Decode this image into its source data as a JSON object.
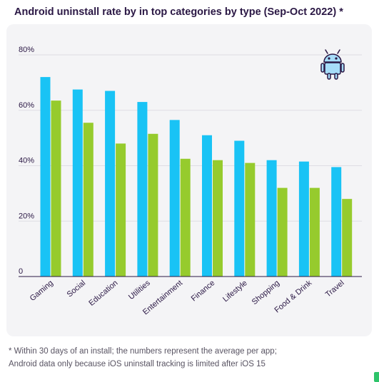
{
  "header": {
    "title": "Android uninstall rate by in top categories by type (Sep-Oct 2022) *"
  },
  "chart_data": {
    "type": "bar",
    "title": "Android uninstall rate by in top categories by type (Sep-Oct 2022) *",
    "xlabel": "",
    "ylabel": "",
    "ylim": [
      0,
      80
    ],
    "yticks": [
      0,
      20,
      40,
      60,
      80
    ],
    "ytick_labels": [
      "0",
      "20%",
      "40%",
      "60%",
      "80%"
    ],
    "grid": true,
    "categories": [
      "Gaming",
      "Social",
      "Education",
      "Utilities",
      "Entertainment",
      "Finance",
      "Lifestyle",
      "Shopping",
      "Food & Drink",
      "Travel"
    ],
    "series": [
      {
        "color": "#19c3f5",
        "values": [
          72,
          67.5,
          67,
          63,
          56.5,
          51,
          49,
          42,
          41.5,
          39.5
        ]
      },
      {
        "color": "#96cb2d",
        "values": [
          63.5,
          55.5,
          48,
          51.5,
          42.5,
          42,
          41,
          32,
          32,
          28
        ]
      }
    ]
  },
  "icons": {
    "platform": "android-robot-icon"
  },
  "footnote": {
    "line1": "* Within 30 days of an install; the numbers represent the average per app;",
    "line2": "Android data only because iOS uninstall tracking is limited after iOS 15"
  },
  "colors": {
    "title": "#2a1744",
    "card_background": "#f4f4f6",
    "series_1": "#19c3f5",
    "series_2": "#96cb2d",
    "icon_fill": "#a6dcf8",
    "icon_stroke": "#2a1744",
    "gridline": "#dedde3",
    "axis": "#2a1744",
    "corner_mark": "#2ec46a"
  }
}
